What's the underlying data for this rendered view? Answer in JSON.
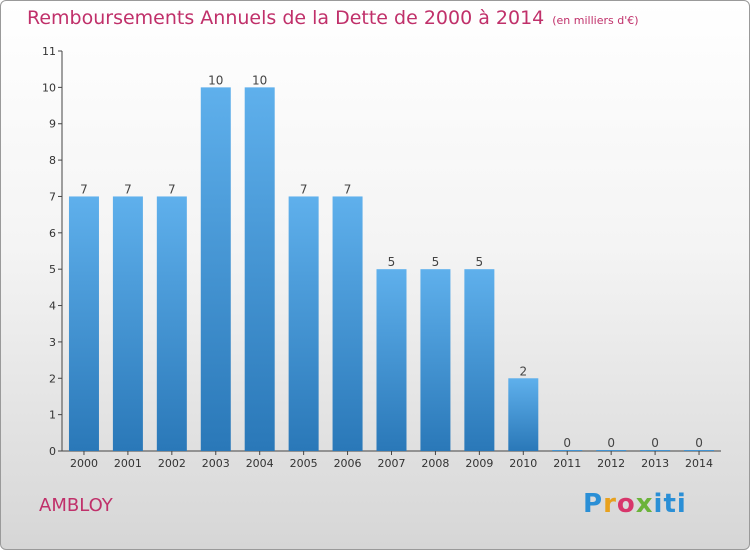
{
  "header": {
    "title": "Remboursements Annuels de la Dette de 2000 à 2014",
    "unit": "(en milliers d'€)"
  },
  "footer": {
    "commune": "AMBLOY",
    "logo_text": "Proxiti"
  },
  "colors": {
    "accent": "#c0306a",
    "bar_top": "#5fb0ec",
    "bar_bottom": "#2a78b8"
  },
  "chart_data": {
    "type": "bar",
    "title": "Remboursements Annuels de la Dette de 2000 à 2014",
    "subtitle": "(en milliers d'€)",
    "xlabel": "",
    "ylabel": "",
    "categories": [
      "2000",
      "2001",
      "2002",
      "2003",
      "2004",
      "2005",
      "2006",
      "2007",
      "2008",
      "2009",
      "2010",
      "2011",
      "2012",
      "2013",
      "2014"
    ],
    "values": [
      7,
      7,
      7,
      10,
      10,
      7,
      7,
      5,
      5,
      5,
      2,
      0,
      0,
      0,
      0
    ],
    "data_labels": [
      "7",
      "7",
      "7",
      "10",
      "10",
      "7",
      "7",
      "5",
      "5",
      "5",
      "2",
      "0",
      "0",
      "0",
      "0"
    ],
    "ylim": [
      0,
      11
    ],
    "yticks": [
      0,
      1,
      2,
      3,
      4,
      5,
      6,
      7,
      8,
      9,
      10,
      11
    ],
    "grid": false,
    "legend": "none"
  }
}
